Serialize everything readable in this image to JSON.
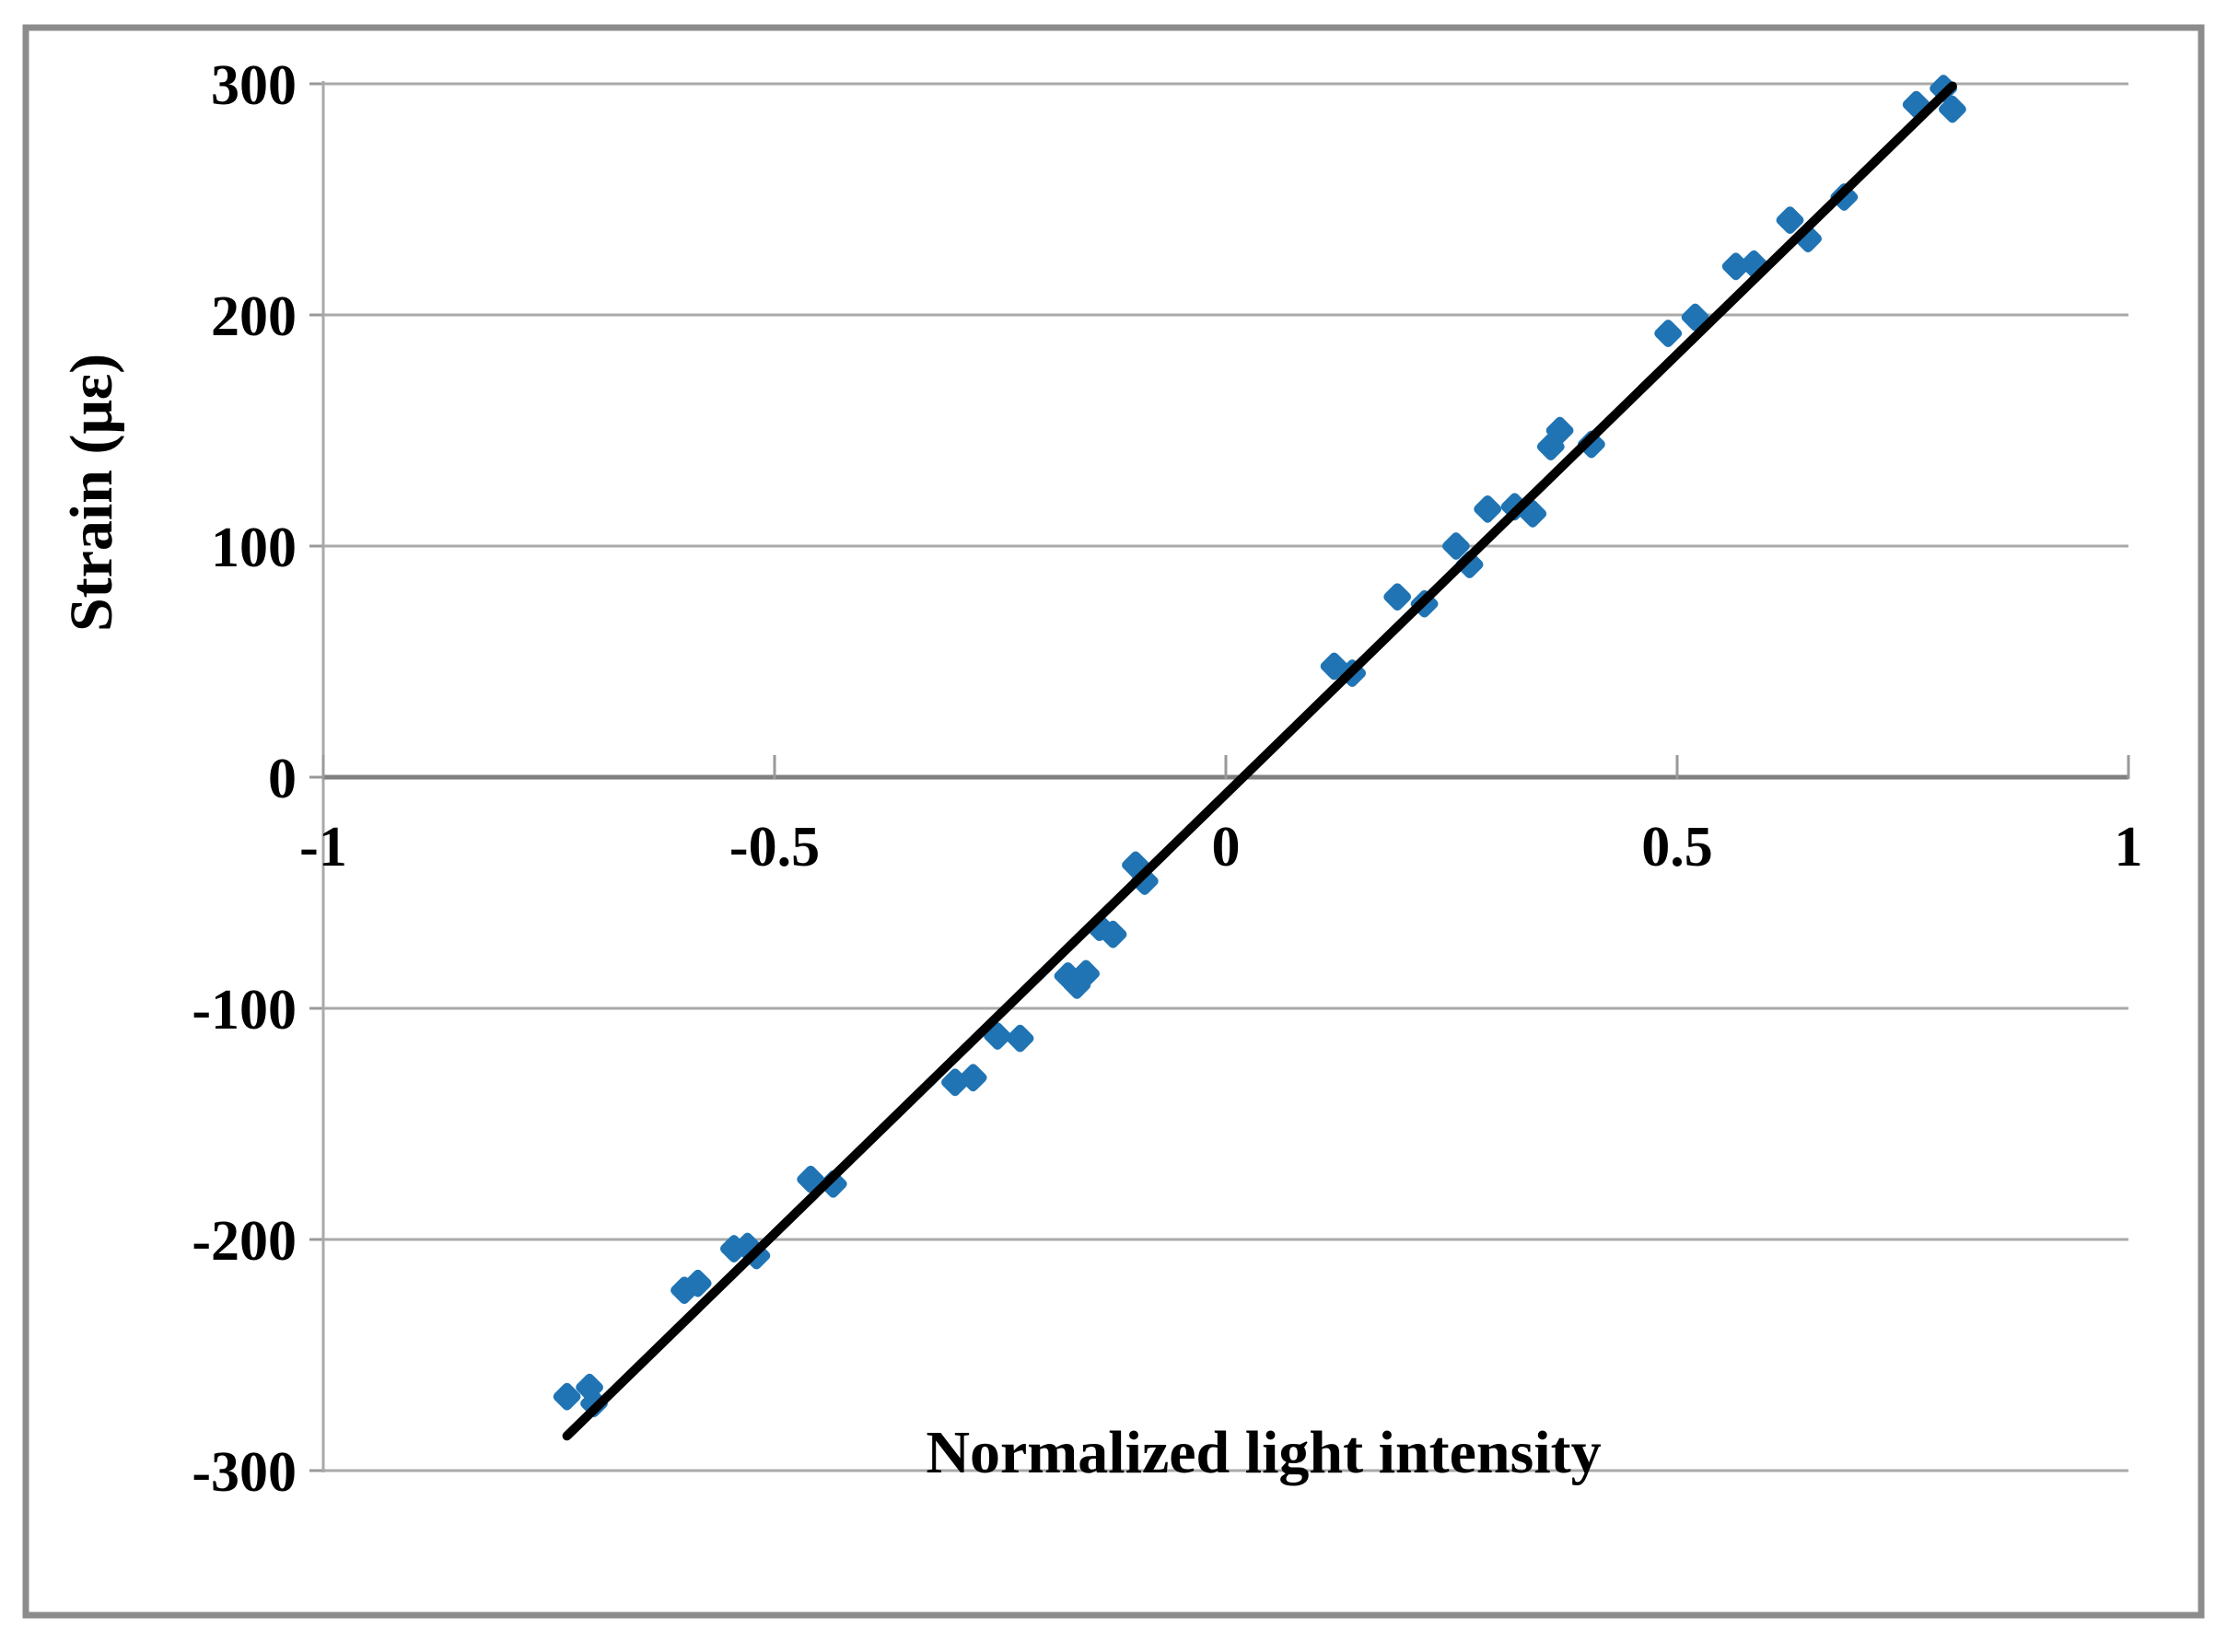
{
  "chart_data": {
    "type": "scatter",
    "title": "",
    "xlabel": "Normalized light intensity",
    "ylabel": "Strain (με)",
    "xlim": [
      -1,
      1
    ],
    "ylim": [
      -300,
      300
    ],
    "xticks": [
      -1,
      -0.5,
      0,
      0.5,
      1
    ],
    "xtick_labels": [
      "-1",
      "-0.5",
      "0",
      "0.5",
      "1"
    ],
    "yticks": [
      -300,
      -200,
      -100,
      0,
      100,
      200,
      300
    ],
    "ytick_labels": [
      "-300",
      "-200",
      "-100",
      "0",
      "100",
      "200",
      "300"
    ],
    "grid": "horizontal",
    "legend": "none",
    "series": [
      {
        "name": "strain-vs-intensity-points",
        "type": "scatter",
        "marker": "diamond",
        "color": "#2074B4",
        "points": [
          [
            -0.73,
            -268
          ],
          [
            -0.705,
            -264
          ],
          [
            -0.7,
            -271
          ],
          [
            -0.6,
            -222
          ],
          [
            -0.585,
            -219
          ],
          [
            -0.545,
            -204
          ],
          [
            -0.53,
            -203
          ],
          [
            -0.52,
            -207
          ],
          [
            -0.46,
            -174
          ],
          [
            -0.435,
            -176
          ],
          [
            -0.3,
            -132
          ],
          [
            -0.28,
            -130
          ],
          [
            -0.253,
            -112
          ],
          [
            -0.228,
            -113
          ],
          [
            -0.175,
            -86
          ],
          [
            -0.165,
            -90
          ],
          [
            -0.155,
            -85
          ],
          [
            -0.14,
            -65
          ],
          [
            -0.125,
            -68
          ],
          [
            -0.1,
            -38
          ],
          [
            -0.09,
            -45
          ],
          [
            0.12,
            48
          ],
          [
            0.14,
            45
          ],
          [
            0.19,
            78
          ],
          [
            0.22,
            75
          ],
          [
            0.255,
            100
          ],
          [
            0.27,
            92
          ],
          [
            0.29,
            116
          ],
          [
            0.32,
            117
          ],
          [
            0.34,
            114
          ],
          [
            0.36,
            143
          ],
          [
            0.37,
            150
          ],
          [
            0.405,
            144
          ],
          [
            0.49,
            192
          ],
          [
            0.52,
            199
          ],
          [
            0.565,
            221
          ],
          [
            0.585,
            222
          ],
          [
            0.625,
            241
          ],
          [
            0.645,
            233
          ],
          [
            0.685,
            251
          ],
          [
            0.765,
            291
          ],
          [
            0.795,
            298
          ],
          [
            0.805,
            289
          ]
        ]
      },
      {
        "name": "linear-fit-line",
        "type": "line",
        "color": "#000000",
        "points": [
          [
            -0.73,
            -285
          ],
          [
            0.805,
            299
          ]
        ]
      }
    ]
  },
  "colors": {
    "marker": "#2074B4",
    "trend_line": "#000000",
    "gridline": "#A9A9A9",
    "zero_axis": "#7F7F7F",
    "axis_line": "#A9A9A9",
    "tick": "#999999",
    "text": "#000000",
    "border": "#8C8C8C",
    "background": "#FFFFFF"
  }
}
